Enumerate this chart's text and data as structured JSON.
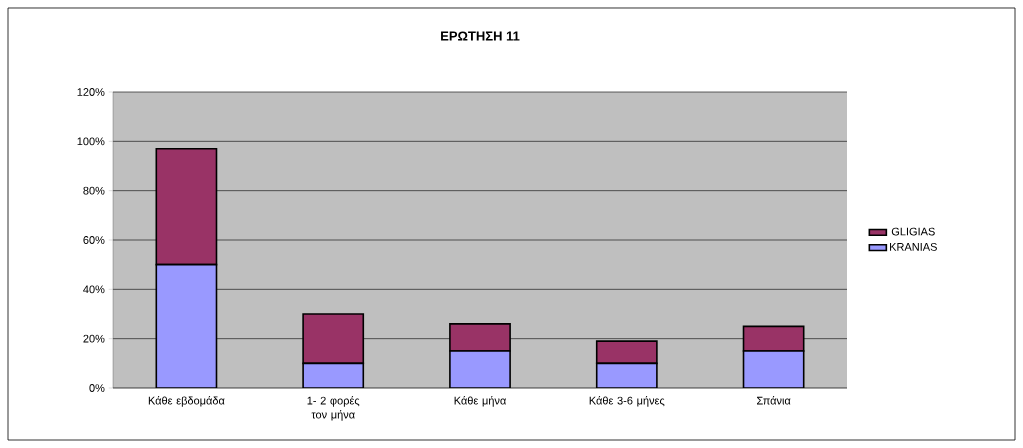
{
  "chart_data": {
    "type": "bar",
    "title": "ΕΡΩΤΗΣΗ 11",
    "stacked": true,
    "categories": [
      "Κάθε εβδομάδα",
      "1- 2 φορές τον μήνα",
      "Κάθε μήνα",
      "Κάθε 3-6 μήνες",
      "Σπάνια"
    ],
    "series": [
      {
        "name": "KRANIAS",
        "color": "#9999ff",
        "values": [
          50,
          10,
          15,
          10,
          15
        ]
      },
      {
        "name": "GLIGIAS",
        "color": "#993366",
        "values": [
          47,
          20,
          11,
          9,
          10
        ]
      }
    ],
    "ylim": [
      0,
      120
    ],
    "yticks": [
      {
        "value": 0,
        "label": "0%"
      },
      {
        "value": 20,
        "label": "20%"
      },
      {
        "value": 40,
        "label": "40%"
      },
      {
        "value": 60,
        "label": "60%"
      },
      {
        "value": 80,
        "label": "80%"
      },
      {
        "value": 100,
        "label": "100%"
      },
      {
        "value": 120,
        "label": "120%"
      }
    ],
    "grid": "y",
    "legend": "right"
  }
}
